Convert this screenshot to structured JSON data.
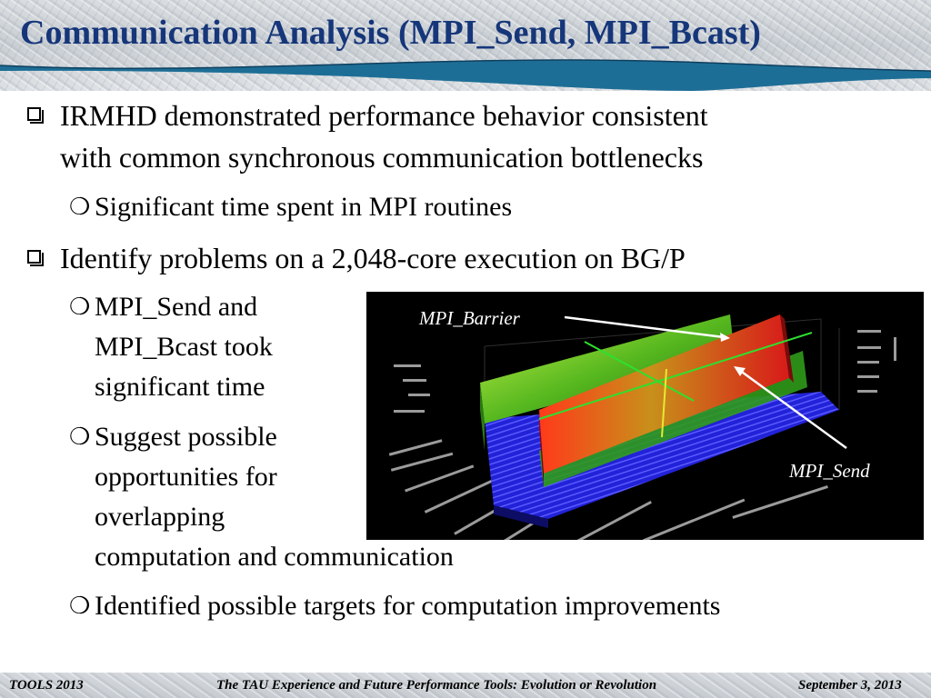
{
  "slide": {
    "title": "Communication Analysis (MPI_Send, MPI_Bcast)"
  },
  "bullets": [
    {
      "level": 1,
      "lines": [
        "IRMHD demonstrated performance behavior consistent",
        "with common synchronous communication bottlenecks"
      ]
    },
    {
      "level": 2,
      "text": "Significant time spent in MPI routines"
    },
    {
      "level": 1,
      "text": "Identify problems on a 2,048-core execution on BG/P"
    },
    {
      "level": 2,
      "lines": [
        "MPI_Send and",
        "MPI_Bcast took",
        "significant time"
      ]
    },
    {
      "level": 2,
      "lines": [
        "Suggest possible",
        "opportunities for",
        "overlapping",
        "computation and communication"
      ]
    },
    {
      "level": 2,
      "text": "Identified possible targets for computation improvements"
    }
  ],
  "figure": {
    "callout_barrier": "MPI_Barrier",
    "callout_send": "MPI_Send",
    "background": "#000000"
  },
  "footer": {
    "left": "TOOLS 2013",
    "center": "The TAU Experience and Future Performance Tools: Evolution or Revolution",
    "right": "September 3, 2013"
  },
  "colors": {
    "title": "#16367a",
    "wave": "#1d6e96"
  }
}
